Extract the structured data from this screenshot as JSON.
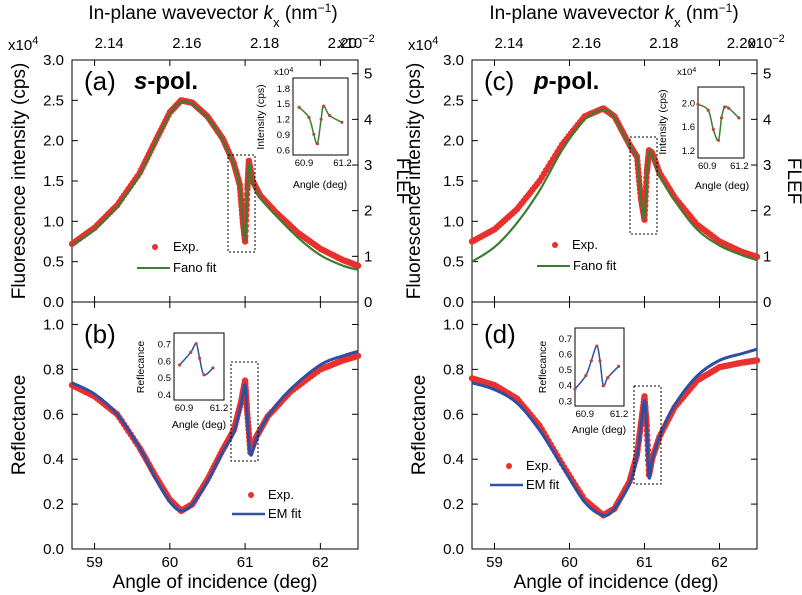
{
  "figure": {
    "top_axis_label_prefix": "In-plane wavevector ",
    "top_axis_label_var": "k",
    "top_axis_label_sub": "x",
    "top_axis_label_unit_pre": " (nm",
    "top_axis_label_unit_exp": "−1",
    "top_axis_label_unit_post": ")",
    "top_scale_mult": "x10",
    "top_scale_exp": "−2",
    "left_scale_mult": "x10",
    "left_scale_exp": "4",
    "bottom_axis_label": "Angle of incidence (deg)",
    "y_label_top": "Fluorescence intensity (cps)",
    "y_label_right": "FLEF",
    "y_label_bottom": "Reflectance"
  },
  "panels": {
    "a": {
      "tag": "(a)",
      "pol_italic": "s",
      "pol_rest": "-pol."
    },
    "b": {
      "tag": "(b)"
    },
    "c": {
      "tag": "(c)",
      "pol_italic": "p",
      "pol_rest": "-pol."
    },
    "d": {
      "tag": "(d)"
    }
  },
  "legends": {
    "exp": "Exp.",
    "fano": "Fano fit",
    "em": "EM fit"
  },
  "insets": {
    "fluor_ylabel": "Intensity (cps)",
    "fluor_mult": "x10",
    "fluor_exp": "4",
    "refl_ylabel": "Reflecance",
    "xlabel": "Angle (deg)"
  },
  "colors": {
    "exp_points": "#e8312e",
    "fano_fit": "#3b7d32",
    "em_fit": "#2f4fa3",
    "inset_points": "#b5483e"
  },
  "chart_data": [
    {
      "panel": "a",
      "type": "scatter",
      "polarization": "s",
      "x_label": "Angle of incidence (deg)",
      "xlim": [
        58.7,
        62.5
      ],
      "x_ticks": [
        59,
        60,
        61,
        62
      ],
      "y_label": "Fluorescence intensity (cps)",
      "y_multiplier": "x10^4",
      "ylim": [
        0,
        3.0
      ],
      "y_ticks": [
        "0.0",
        "0.5",
        "1.0",
        "1.5",
        "2.0",
        "2.5",
        "3.0"
      ],
      "right_axis": {
        "label": "FLEF",
        "ticks": [
          "0",
          "1",
          "2",
          "3",
          "4",
          "5"
        ],
        "ylim": [
          0,
          5.3
        ]
      },
      "top_axis": {
        "label": "In-plane wavevector kx (nm-1)",
        "multiplier": "x10^-2",
        "ticks": [
          "2.14",
          "2.16",
          "2.18",
          "2.20"
        ]
      },
      "series": [
        {
          "name": "Exp.",
          "style": "points",
          "x": [
            58.7,
            59.0,
            59.3,
            59.6,
            59.8,
            60.0,
            60.15,
            60.3,
            60.5,
            60.7,
            60.85,
            60.93,
            60.97,
            61.0,
            61.03,
            61.05,
            61.1,
            61.2,
            61.4,
            61.7,
            62.0,
            62.3,
            62.5
          ],
          "y": [
            0.72,
            0.92,
            1.2,
            1.6,
            1.98,
            2.35,
            2.5,
            2.47,
            2.3,
            2.03,
            1.72,
            1.45,
            1.0,
            0.75,
            1.4,
            1.75,
            1.5,
            1.32,
            1.12,
            0.86,
            0.66,
            0.52,
            0.45
          ]
        },
        {
          "name": "Fano fit",
          "style": "line",
          "x": [
            58.7,
            59.0,
            59.3,
            59.6,
            59.8,
            60.0,
            60.15,
            60.3,
            60.5,
            60.7,
            60.85,
            60.93,
            60.97,
            61.0,
            61.03,
            61.05,
            61.1,
            61.2,
            61.4,
            61.7,
            62.0,
            62.3,
            62.5
          ],
          "y": [
            0.7,
            0.9,
            1.18,
            1.58,
            1.96,
            2.33,
            2.48,
            2.45,
            2.28,
            2.01,
            1.7,
            1.43,
            0.98,
            0.78,
            1.38,
            1.72,
            1.48,
            1.29,
            1.08,
            0.8,
            0.58,
            0.45,
            0.4
          ]
        }
      ],
      "inset": {
        "xlabel": "Angle (deg)",
        "ylabel": "Intensity (cps)",
        "y_multiplier": "x10^4",
        "x_ticks": [
          "60.9",
          "61.2"
        ],
        "y_ticks": [
          "0.6",
          "0.9",
          "1.2",
          "1.5",
          "1.8"
        ]
      }
    },
    {
      "panel": "b",
      "type": "scatter",
      "polarization": "s",
      "x_label": "Angle of incidence (deg)",
      "xlim": [
        58.7,
        62.5
      ],
      "x_ticks": [
        59,
        60,
        61,
        62
      ],
      "y_label": "Reflectance",
      "ylim": [
        0,
        1.1
      ],
      "y_ticks": [
        "0.0",
        "0.2",
        "0.4",
        "0.6",
        "0.8",
        "1.0"
      ],
      "series": [
        {
          "name": "Exp.",
          "style": "points",
          "x": [
            58.7,
            59.0,
            59.3,
            59.6,
            59.8,
            60.0,
            60.15,
            60.3,
            60.5,
            60.7,
            60.85,
            60.95,
            61.0,
            61.03,
            61.07,
            61.15,
            61.3,
            61.6,
            62.0,
            62.3,
            62.5
          ],
          "y": [
            0.73,
            0.68,
            0.6,
            0.45,
            0.33,
            0.22,
            0.17,
            0.2,
            0.31,
            0.44,
            0.53,
            0.66,
            0.75,
            0.6,
            0.43,
            0.5,
            0.59,
            0.7,
            0.8,
            0.84,
            0.86
          ]
        },
        {
          "name": "EM fit",
          "style": "line",
          "x": [
            58.7,
            59.0,
            59.3,
            59.6,
            59.8,
            60.0,
            60.15,
            60.3,
            60.5,
            60.7,
            60.85,
            60.95,
            61.0,
            61.03,
            61.07,
            61.15,
            61.3,
            61.6,
            62.0,
            62.3,
            62.5
          ],
          "y": [
            0.74,
            0.69,
            0.6,
            0.45,
            0.32,
            0.21,
            0.17,
            0.2,
            0.3,
            0.43,
            0.52,
            0.65,
            0.73,
            0.58,
            0.42,
            0.49,
            0.59,
            0.71,
            0.82,
            0.86,
            0.88
          ]
        }
      ],
      "inset": {
        "xlabel": "Angle (deg)",
        "ylabel": "Reflecance",
        "x_ticks": [
          "60.9",
          "61.2"
        ],
        "y_ticks": [
          "0.4",
          "0.5",
          "0.6",
          "0.7"
        ]
      }
    },
    {
      "panel": "c",
      "type": "scatter",
      "polarization": "p",
      "x_label": "Angle of incidence (deg)",
      "xlim": [
        58.7,
        62.5
      ],
      "x_ticks": [
        59,
        60,
        61,
        62
      ],
      "y_label": "Fluorescence intensity (cps)",
      "y_multiplier": "x10^4",
      "ylim": [
        0,
        3.0
      ],
      "y_ticks": [
        "0.0",
        "0.5",
        "1.0",
        "1.5",
        "2.0",
        "2.5",
        "3.0"
      ],
      "right_axis": {
        "label": "FLEF",
        "ticks": [
          "0",
          "1",
          "2",
          "3",
          "4",
          "5"
        ],
        "ylim": [
          0,
          5.3
        ]
      },
      "top_axis": {
        "label": "In-plane wavevector kx (nm-1)",
        "multiplier": "x10^-2",
        "ticks": [
          "2.14",
          "2.16",
          "2.18",
          "2.20"
        ]
      },
      "series": [
        {
          "name": "Exp.",
          "style": "points",
          "x": [
            58.7,
            59.0,
            59.3,
            59.6,
            59.9,
            60.2,
            60.45,
            60.6,
            60.8,
            60.9,
            60.95,
            61.0,
            61.03,
            61.06,
            61.1,
            61.2,
            61.4,
            61.7,
            62.0,
            62.3,
            62.5
          ],
          "y": [
            0.75,
            0.9,
            1.15,
            1.5,
            1.95,
            2.3,
            2.4,
            2.3,
            1.95,
            1.8,
            1.3,
            1.02,
            1.6,
            1.88,
            1.85,
            1.6,
            1.3,
            0.96,
            0.75,
            0.62,
            0.56
          ]
        },
        {
          "name": "Fano fit",
          "style": "line",
          "x": [
            58.7,
            59.0,
            59.3,
            59.6,
            59.9,
            60.2,
            60.45,
            60.6,
            60.8,
            60.9,
            60.95,
            61.0,
            61.03,
            61.06,
            61.1,
            61.2,
            61.4,
            61.7,
            62.0,
            62.3,
            62.5
          ],
          "y": [
            0.5,
            0.68,
            0.98,
            1.38,
            1.88,
            2.26,
            2.38,
            2.28,
            1.93,
            1.78,
            1.28,
            1.05,
            1.56,
            1.85,
            1.82,
            1.57,
            1.26,
            0.9,
            0.7,
            0.58,
            0.52
          ]
        }
      ],
      "inset": {
        "xlabel": "Angle (deg)",
        "ylabel": "Intensity (cps)",
        "y_multiplier": "x10^4",
        "x_ticks": [
          "60.9",
          "61.2"
        ],
        "y_ticks": [
          "1.2",
          "1.6",
          "2.0"
        ]
      }
    },
    {
      "panel": "d",
      "type": "scatter",
      "polarization": "p",
      "x_label": "Angle of incidence (deg)",
      "xlim": [
        58.7,
        62.5
      ],
      "x_ticks": [
        59,
        60,
        61,
        62
      ],
      "y_label": "Reflectance",
      "ylim": [
        0,
        1.1
      ],
      "y_ticks": [
        "0.0",
        "0.2",
        "0.4",
        "0.6",
        "0.8",
        "1.0"
      ],
      "series": [
        {
          "name": "Exp.",
          "style": "points",
          "x": [
            58.7,
            59.0,
            59.3,
            59.6,
            59.9,
            60.2,
            60.45,
            60.6,
            60.8,
            60.9,
            60.95,
            61.0,
            61.03,
            61.06,
            61.1,
            61.2,
            61.4,
            61.7,
            62.0,
            62.3,
            62.5
          ],
          "y": [
            0.76,
            0.73,
            0.67,
            0.55,
            0.38,
            0.22,
            0.15,
            0.18,
            0.3,
            0.42,
            0.55,
            0.68,
            0.55,
            0.33,
            0.4,
            0.5,
            0.63,
            0.75,
            0.81,
            0.83,
            0.84
          ]
        },
        {
          "name": "EM fit",
          "style": "line",
          "x": [
            58.7,
            59.0,
            59.3,
            59.6,
            59.9,
            60.2,
            60.45,
            60.6,
            60.8,
            60.9,
            60.95,
            61.0,
            61.03,
            61.06,
            61.1,
            61.2,
            61.4,
            61.7,
            62.0,
            62.3,
            62.5
          ],
          "y": [
            0.74,
            0.71,
            0.65,
            0.53,
            0.37,
            0.21,
            0.15,
            0.18,
            0.29,
            0.41,
            0.54,
            0.66,
            0.53,
            0.32,
            0.39,
            0.5,
            0.64,
            0.77,
            0.84,
            0.87,
            0.89
          ]
        }
      ],
      "inset": {
        "xlabel": "Angle (deg)",
        "ylabel": "Reflecance",
        "x_ticks": [
          "60.9",
          "61.2"
        ],
        "y_ticks": [
          "0.3",
          "0.4",
          "0.5",
          "0.6",
          "0.7"
        ]
      }
    }
  ]
}
